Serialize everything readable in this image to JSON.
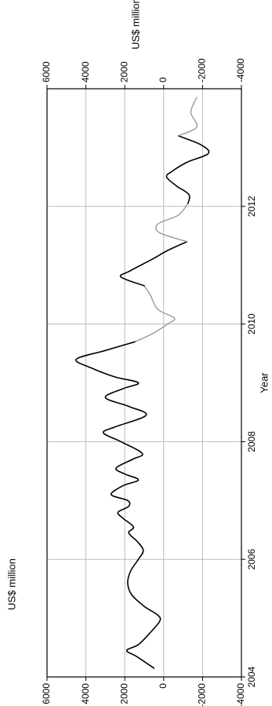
{
  "chart_data": {
    "type": "line",
    "orientation": "rotated-90-ccw",
    "xlabel": "Year",
    "ylabel_left": "US$ million",
    "ylabel_right": "US$ million",
    "xlim": [
      2004,
      2014
    ],
    "x_ticks": [
      "2004",
      "2006",
      "2008",
      "2010",
      "2012"
    ],
    "ylim_left": [
      -4000,
      6000
    ],
    "y_ticks_left": [
      "6000",
      "4000",
      "2000",
      "0",
      "-2000",
      "-4000"
    ],
    "ylim_right": [
      -4000,
      6000
    ],
    "y_ticks_right": [
      "6000",
      "4000",
      "2000",
      "0",
      "-2000",
      "-4000"
    ],
    "grid": true,
    "colors": {
      "dark": "#000000",
      "light": "#999999",
      "grid": "#bbbbbb"
    },
    "series": [
      {
        "color": "dark",
        "points": [
          [
            2004.15,
            500
          ],
          [
            2004.35,
            1400
          ],
          [
            2004.45,
            1900
          ],
          [
            2004.55,
            1300
          ],
          [
            2004.75,
            700
          ],
          [
            2004.95,
            200
          ],
          [
            2005.05,
            300
          ],
          [
            2005.2,
            1000
          ],
          [
            2005.4,
            1650
          ],
          [
            2005.6,
            1850
          ],
          [
            2005.8,
            1700
          ],
          [
            2006.0,
            1300
          ],
          [
            2006.15,
            1050
          ],
          [
            2006.3,
            1350
          ],
          [
            2006.45,
            1800
          ],
          [
            2006.55,
            1550
          ],
          [
            2006.7,
            2100
          ],
          [
            2006.8,
            2350
          ],
          [
            2006.9,
            1800
          ],
          [
            2007.0,
            1850
          ],
          [
            2007.1,
            2700
          ],
          [
            2007.25,
            2100
          ],
          [
            2007.35,
            1300
          ],
          [
            2007.45,
            2000
          ],
          [
            2007.55,
            2450
          ],
          [
            2007.7,
            1600
          ],
          [
            2007.8,
            1100
          ],
          [
            2008.0,
            2200
          ],
          [
            2008.15,
            3100
          ],
          [
            2008.25,
            2500
          ],
          [
            2008.45,
            900
          ],
          [
            2008.6,
            1800
          ],
          [
            2008.75,
            3000
          ],
          [
            2008.9,
            2100
          ],
          [
            2009.0,
            1300
          ],
          [
            2009.1,
            2500
          ],
          [
            2009.25,
            3700
          ],
          [
            2009.4,
            4500
          ],
          [
            2009.55,
            3000
          ],
          [
            2009.7,
            1450
          ]
        ]
      },
      {
        "color": "light",
        "points": [
          [
            2009.7,
            1450
          ],
          [
            2009.85,
            500
          ],
          [
            2010.0,
            -200
          ],
          [
            2010.1,
            -550
          ],
          [
            2010.25,
            300
          ],
          [
            2010.5,
            700
          ],
          [
            2010.65,
            1000
          ]
        ]
      },
      {
        "color": "dark",
        "points": [
          [
            2010.65,
            1000
          ],
          [
            2010.8,
            2200
          ],
          [
            2010.9,
            1750
          ],
          [
            2011.1,
            600
          ],
          [
            2011.25,
            -200
          ],
          [
            2011.4,
            -1200
          ]
        ]
      },
      {
        "color": "light",
        "points": [
          [
            2011.4,
            -1200
          ],
          [
            2011.55,
            200
          ],
          [
            2011.7,
            300
          ],
          [
            2011.85,
            -750
          ],
          [
            2012.05,
            -1250
          ]
        ]
      },
      {
        "color": "dark",
        "points": [
          [
            2012.05,
            -1250
          ],
          [
            2012.2,
            -1300
          ],
          [
            2012.35,
            -650
          ],
          [
            2012.5,
            -150
          ],
          [
            2012.6,
            -450
          ],
          [
            2012.75,
            -1200
          ],
          [
            2012.9,
            -2300
          ],
          [
            2013.05,
            -1900
          ],
          [
            2013.2,
            -750
          ]
        ]
      },
      {
        "color": "light",
        "points": [
          [
            2013.2,
            -750
          ],
          [
            2013.35,
            -1700
          ],
          [
            2013.6,
            -1400
          ],
          [
            2013.85,
            -1700
          ]
        ]
      }
    ]
  }
}
